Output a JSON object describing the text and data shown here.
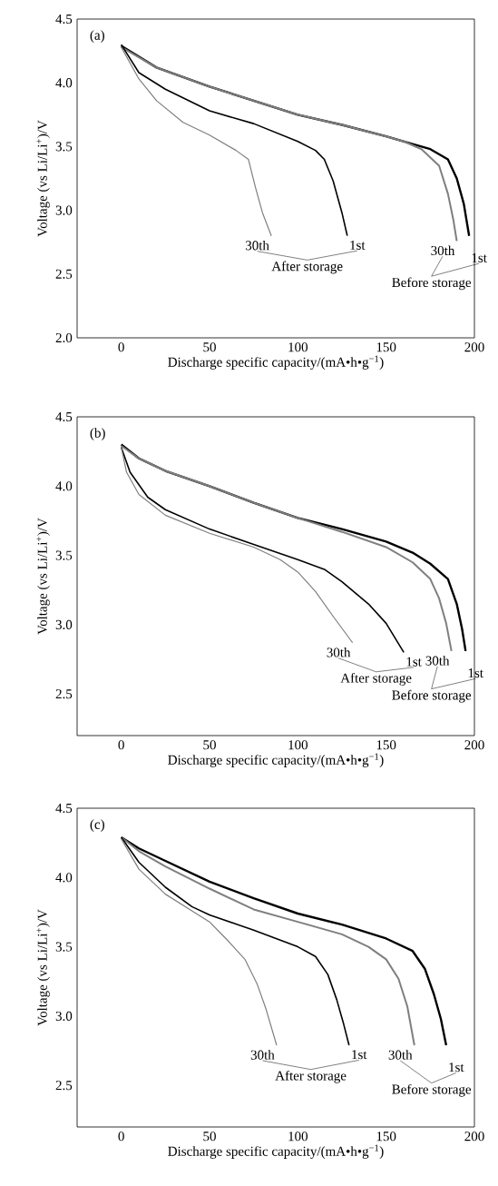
{
  "chart_data": [
    {
      "type": "line",
      "title": "(a)",
      "xlabel": "Discharge specific capacity/(mA•h•g$^{−1}$)",
      "ylabel": "Voltage (vs Li/Li$^{+}$)/V",
      "xlim": [
        -25,
        200
      ],
      "ylim": [
        2.0,
        4.5
      ],
      "xticks": [
        0,
        50,
        100,
        150,
        200
      ],
      "yticks": [
        {
          "value": 2,
          "label": "2.0"
        },
        2.5,
        {
          "value": 3,
          "label": "3.0"
        },
        3.5,
        {
          "value": 4,
          "label": "4.0"
        },
        4.5
      ],
      "series": [
        {
          "color": "#000000",
          "x": [
            0,
            20,
            50,
            75,
            100,
            125,
            150,
            165,
            175,
            185,
            190,
            194,
            197
          ],
          "values": [
            4.29,
            4.12,
            3.97,
            3.86,
            3.75,
            3.67,
            3.58,
            3.52,
            3.48,
            3.4,
            3.25,
            3.05,
            2.8
          ]
        },
        {
          "color": "#7f7f7f",
          "x": [
            0,
            20,
            50,
            75,
            100,
            125,
            150,
            160,
            170,
            180,
            185,
            188,
            190
          ],
          "values": [
            4.28,
            4.12,
            3.97,
            3.86,
            3.75,
            3.67,
            3.58,
            3.54,
            3.48,
            3.35,
            3.13,
            2.93,
            2.76
          ]
        },
        {
          "color": "#000000",
          "x": [
            0,
            10,
            25,
            50,
            75,
            100,
            110,
            115,
            120,
            125,
            128
          ],
          "values": [
            4.3,
            4.08,
            3.95,
            3.78,
            3.68,
            3.54,
            3.47,
            3.4,
            3.23,
            2.98,
            2.8
          ]
        },
        {
          "color": "#7f7f7f",
          "x": [
            0,
            10,
            20,
            35,
            50,
            65,
            72,
            76,
            80,
            85
          ],
          "values": [
            4.28,
            4.03,
            3.86,
            3.69,
            3.59,
            3.47,
            3.4,
            3.18,
            2.98,
            2.8
          ]
        }
      ],
      "annotations": [
        "30th",
        "1st",
        "After storage",
        "30th",
        "1st",
        "Before storage"
      ]
    },
    {
      "type": "line",
      "title": "(b)",
      "xlabel": "Discharge specific capacity/(mA•h•g$^{−1}$)",
      "ylabel": "Voltage (vs Li/Li$^{+}$)/V",
      "xlim": [
        -25,
        200
      ],
      "ylim": [
        2.2,
        4.5
      ],
      "xticks": [
        0,
        50,
        100,
        150,
        200
      ],
      "yticks": [
        2.5,
        {
          "value": 3,
          "label": "3.0"
        },
        3.5,
        {
          "value": 4,
          "label": "4.0"
        },
        4.5
      ],
      "series": [
        {
          "color": "#000000",
          "x": [
            0,
            10,
            25,
            50,
            75,
            100,
            125,
            150,
            165,
            175,
            185,
            190,
            193,
            195
          ],
          "values": [
            4.3,
            4.2,
            4.11,
            4.0,
            3.88,
            3.77,
            3.69,
            3.6,
            3.52,
            3.44,
            3.33,
            3.15,
            2.97,
            2.81
          ]
        },
        {
          "color": "#7f7f7f",
          "x": [
            0,
            10,
            25,
            50,
            75,
            100,
            125,
            150,
            165,
            175,
            180,
            184,
            187
          ],
          "values": [
            4.29,
            4.2,
            4.11,
            4.0,
            3.88,
            3.77,
            3.67,
            3.56,
            3.45,
            3.33,
            3.19,
            3.01,
            2.81
          ]
        },
        {
          "color": "#000000",
          "x": [
            0,
            5,
            15,
            25,
            50,
            75,
            100,
            115,
            125,
            140,
            150,
            160
          ],
          "values": [
            4.28,
            4.1,
            3.92,
            3.83,
            3.69,
            3.58,
            3.47,
            3.4,
            3.31,
            3.15,
            3.01,
            2.8
          ]
        },
        {
          "color": "#7f7f7f",
          "x": [
            0,
            3,
            10,
            25,
            50,
            75,
            90,
            100,
            110,
            120,
            131
          ],
          "values": [
            4.28,
            4.1,
            3.94,
            3.79,
            3.66,
            3.56,
            3.47,
            3.38,
            3.24,
            3.06,
            2.87
          ]
        }
      ],
      "annotations": [
        "30th",
        "1st",
        "After storage",
        "30th",
        "1st",
        "Before storage"
      ]
    },
    {
      "type": "line",
      "title": "(c)",
      "xlabel": "Discharge specific capacity/(mA•h•g$^{−1}$)",
      "ylabel": "Voltage (vs Li/Li$^{+}$)/V",
      "xlim": [
        -25,
        200
      ],
      "ylim": [
        2.2,
        4.5
      ],
      "xticks": [
        0,
        50,
        100,
        150,
        200
      ],
      "yticks": [
        2.5,
        {
          "value": 3,
          "label": "3.0"
        },
        3.5,
        {
          "value": 4,
          "label": "4.0"
        },
        4.5
      ],
      "series": [
        {
          "color": "#000000",
          "x": [
            0,
            10,
            25,
            50,
            75,
            100,
            125,
            150,
            165,
            172,
            177,
            181,
            184
          ],
          "values": [
            4.29,
            4.21,
            4.12,
            3.97,
            3.85,
            3.74,
            3.66,
            3.56,
            3.47,
            3.34,
            3.16,
            2.98,
            2.79
          ]
        },
        {
          "color": "#7f7f7f",
          "x": [
            0,
            10,
            25,
            50,
            75,
            100,
            125,
            140,
            150,
            157,
            162,
            166
          ],
          "values": [
            4.29,
            4.19,
            4.08,
            3.92,
            3.77,
            3.68,
            3.59,
            3.5,
            3.41,
            3.27,
            3.07,
            2.79
          ]
        },
        {
          "color": "#000000",
          "x": [
            0,
            10,
            25,
            40,
            50,
            75,
            100,
            110,
            117,
            122,
            126,
            129
          ],
          "values": [
            4.29,
            4.11,
            3.93,
            3.79,
            3.73,
            3.62,
            3.5,
            3.43,
            3.3,
            3.12,
            2.94,
            2.79
          ]
        },
        {
          "color": "#7f7f7f",
          "x": [
            0,
            10,
            25,
            40,
            50,
            60,
            70,
            77,
            82,
            88
          ],
          "values": [
            4.28,
            4.06,
            3.88,
            3.76,
            3.68,
            3.55,
            3.41,
            3.23,
            3.05,
            2.79
          ]
        }
      ],
      "annotations": [
        "30th",
        "1st",
        "After storage",
        "30th",
        "1st",
        "Before storage"
      ]
    }
  ]
}
